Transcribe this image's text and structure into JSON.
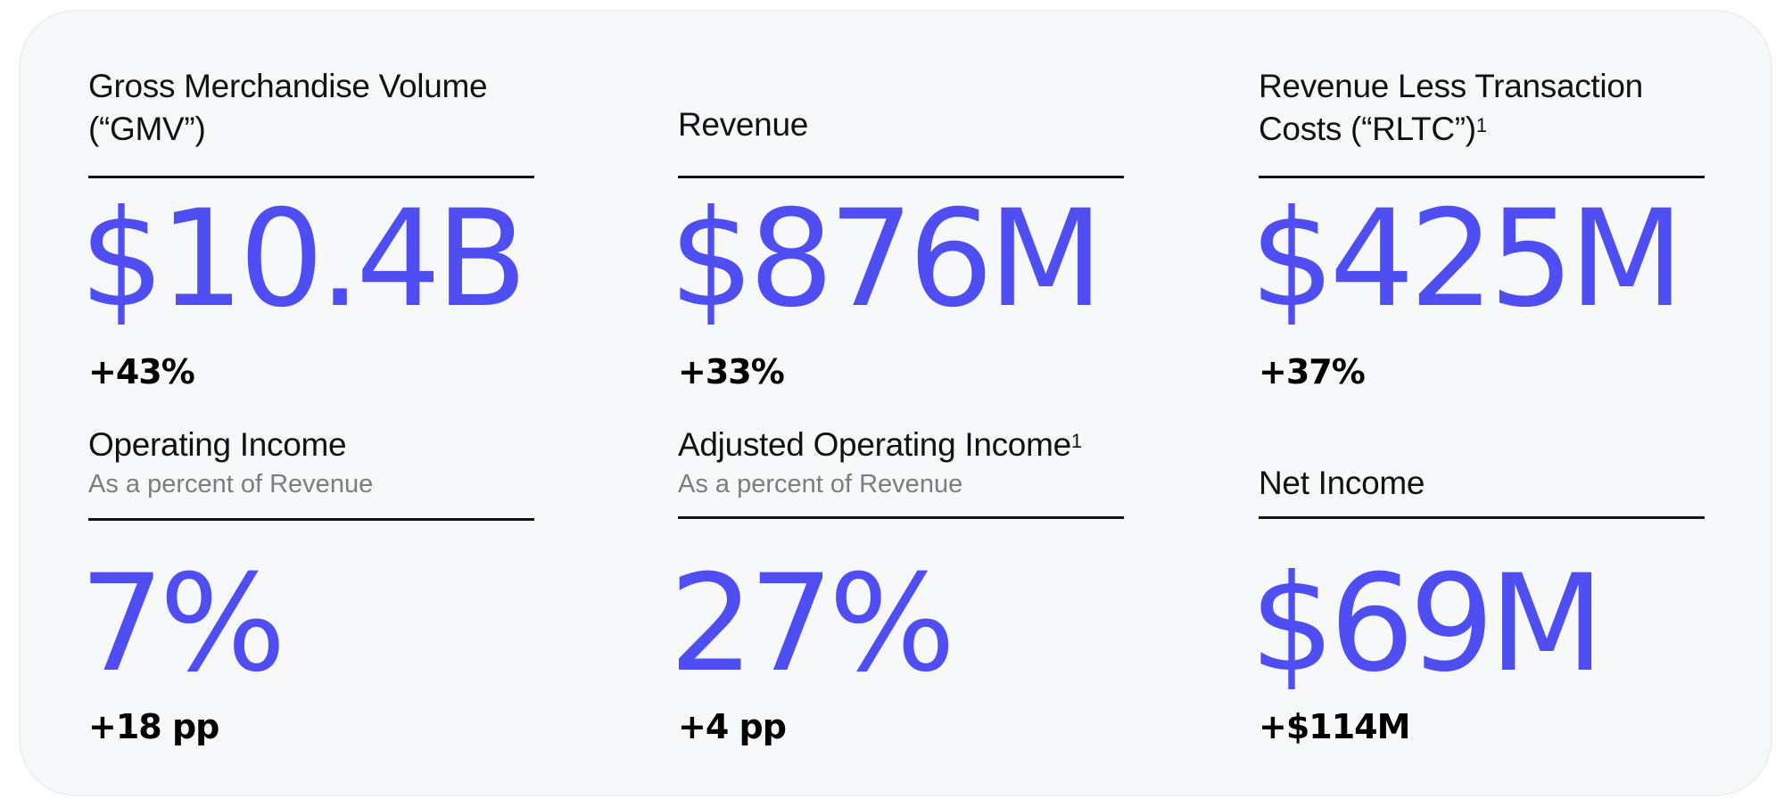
{
  "metrics": [
    {
      "title_line1": "Gross Merchandise Volume",
      "title_line2": "(“GMV”)",
      "value": "$10.4B",
      "change": "+43%"
    },
    {
      "title_line1": "Revenue",
      "value": "$876M",
      "change": "+33%"
    },
    {
      "title_line1": "Revenue Less Transaction",
      "title_line2": "Costs (“RLTC”)",
      "footnote": "1",
      "value": "$425M",
      "change": "+37%"
    },
    {
      "title_line1": "Operating Income",
      "subtitle": "As a percent of Revenue",
      "value": "7%",
      "change": "+18 pp"
    },
    {
      "title_line1": "Adjusted Operating Income",
      "footnote": "1",
      "subtitle": "As a percent of Revenue",
      "value": "27%",
      "change": "+4 pp"
    },
    {
      "title_line1": "Net Income",
      "value": "$69M",
      "change": "+$114M"
    }
  ],
  "colors": {
    "accent": "#4f4ef2",
    "text": "#111111",
    "muted": "#7d7d7d",
    "card_background": "#f7f8fa"
  }
}
